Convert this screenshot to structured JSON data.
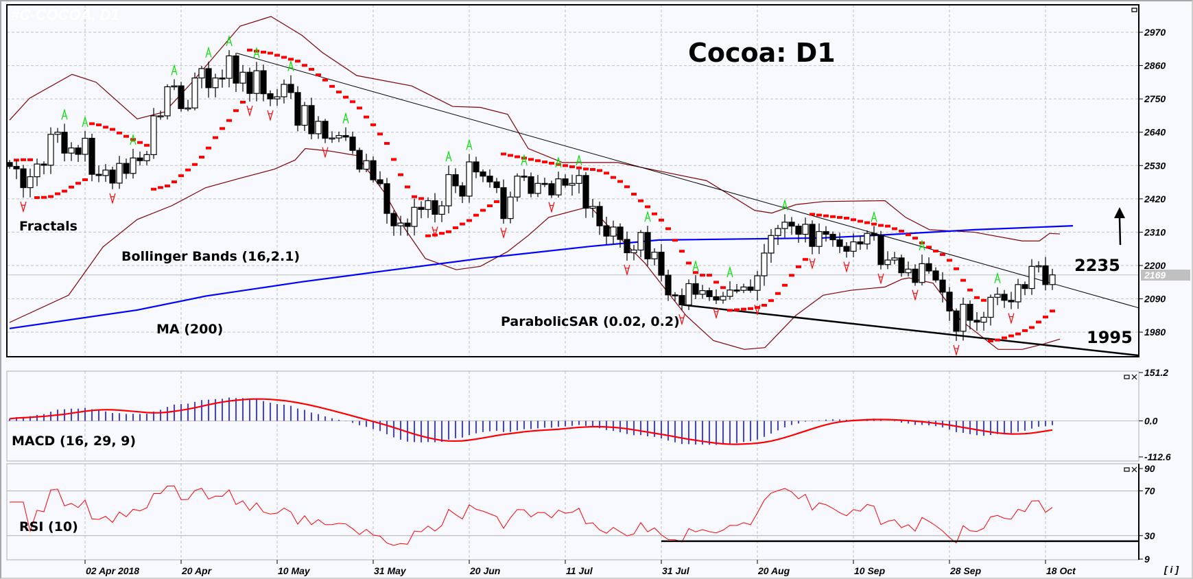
{
  "watermark": "#C-COCOA, D1",
  "title": "Cocoa: D1",
  "labels": {
    "fractals": "Fractals",
    "bollinger": "Bollinger Bands (16,2.1)",
    "ma": "MA (200)",
    "sar": "ParabolicSAR (0.02, 0.2)",
    "macd": "MACD (16, 29, 9)",
    "rsi": "RSI (10)",
    "resistance": "2235",
    "support": "1995",
    "current_price": "2169",
    "info": "[ i ]"
  },
  "colors": {
    "background": "#f7f9fe",
    "grid": "#c0c0c0",
    "ma": "#0000ff",
    "bands": "#800000",
    "sar": "#ff0000",
    "fractal_up": "#00e000",
    "fractal_down": "#ff0000",
    "macd_hist": "#0000ff",
    "macd_signal": "#ff0000",
    "rsi": "#ff0000",
    "price_box": "#c0c0c0"
  },
  "chart_data": [
    {
      "type": "candlestick",
      "symbol": "Cocoa",
      "timeframe": "D1",
      "ylim": [
        1940,
        3010
      ],
      "yticks": [
        2970,
        2860,
        2750,
        2640,
        2530,
        2420,
        2310,
        2200,
        2090,
        1980
      ],
      "xticks": [
        {
          "label": "02 Apr 2018",
          "bar": 12
        },
        {
          "label": "20 Apr",
          "bar": 26
        },
        {
          "label": "10 May",
          "bar": 40
        },
        {
          "label": "31 May",
          "bar": 54
        },
        {
          "label": "20 Jun",
          "bar": 68
        },
        {
          "label": "11 Jul",
          "bar": 82
        },
        {
          "label": "31 Jul",
          "bar": 96
        },
        {
          "label": "20 Aug",
          "bar": 110
        },
        {
          "label": "10 Sep",
          "bar": 124
        },
        {
          "label": "28 Sep",
          "bar": 138
        },
        {
          "label": "18 Oct",
          "bar": 152
        }
      ],
      "grid": true,
      "close": [
        2527,
        2519,
        2457,
        2493,
        2535,
        2531,
        2633,
        2640,
        2571,
        2588,
        2567,
        2620,
        2501,
        2497,
        2515,
        2472,
        2537,
        2504,
        2555,
        2546,
        2566,
        2694,
        2694,
        2790,
        2793,
        2718,
        2720,
        2819,
        2850,
        2787,
        2819,
        2818,
        2892,
        2802,
        2838,
        2768,
        2843,
        2767,
        2750,
        2757,
        2798,
        2771,
        2663,
        2728,
        2635,
        2676,
        2620,
        2621,
        2629,
        2624,
        2580,
        2518,
        2546,
        2483,
        2470,
        2372,
        2331,
        2340,
        2329,
        2392,
        2385,
        2414,
        2369,
        2397,
        2500,
        2463,
        2429,
        2542,
        2509,
        2495,
        2476,
        2457,
        2355,
        2426,
        2495,
        2493,
        2438,
        2471,
        2470,
        2433,
        2486,
        2465,
        2471,
        2497,
        2389,
        2395,
        2331,
        2297,
        2327,
        2286,
        2242,
        2251,
        2309,
        2222,
        2244,
        2168,
        2103,
        2101,
        2070,
        2140,
        2105,
        2117,
        2097,
        2086,
        2098,
        2119,
        2118,
        2129,
        2118,
        2166,
        2241,
        2299,
        2322,
        2343,
        2330,
        2303,
        2336,
        2263,
        2312,
        2303,
        2285,
        2263,
        2247,
        2278,
        2271,
        2306,
        2299,
        2203,
        2218,
        2225,
        2176,
        2188,
        2144,
        2206,
        2182,
        2152,
        2112,
        2050,
        1983,
        2072,
        2019,
        2013,
        2029,
        2095,
        2105,
        2085,
        2080,
        2137,
        2124,
        2197,
        2199,
        2137,
        2169
      ],
      "first_open": 2540,
      "current_price": 2169,
      "ma200": [
        [
          1,
          1992
        ],
        [
          19.6,
          2053
        ],
        [
          29.6,
          2099
        ],
        [
          43.6,
          2146
        ],
        [
          55.6,
          2182
        ],
        [
          69.6,
          2223
        ],
        [
          85.6,
          2263
        ],
        [
          95.6,
          2284
        ],
        [
          119.6,
          2291
        ],
        [
          127.6,
          2300
        ],
        [
          141.6,
          2318
        ],
        [
          156,
          2331
        ]
      ],
      "bollinger_upper": [
        [
          1,
          2680
        ],
        [
          3.9,
          2752
        ],
        [
          10.1,
          2831
        ],
        [
          13.6,
          2805
        ],
        [
          19.6,
          2684
        ],
        [
          23.6,
          2707
        ],
        [
          27.6,
          2805
        ],
        [
          34.6,
          2990
        ],
        [
          39.1,
          3022
        ],
        [
          43.6,
          2960
        ],
        [
          46.6,
          2903
        ],
        [
          51.6,
          2827
        ],
        [
          59.6,
          2793
        ],
        [
          65.6,
          2725
        ],
        [
          69.6,
          2722
        ],
        [
          73.6,
          2699
        ],
        [
          76.6,
          2586
        ],
        [
          81.6,
          2540
        ],
        [
          89.6,
          2540
        ],
        [
          97.6,
          2503
        ],
        [
          102.6,
          2480
        ],
        [
          105.6,
          2438
        ],
        [
          109.6,
          2382
        ],
        [
          112.1,
          2373
        ],
        [
          115.6,
          2401
        ],
        [
          119.6,
          2411
        ],
        [
          128.6,
          2414
        ],
        [
          131.6,
          2359
        ],
        [
          135.1,
          2318
        ],
        [
          141.6,
          2310
        ],
        [
          148.6,
          2281
        ],
        [
          151.1,
          2281
        ],
        [
          152.6,
          2306
        ],
        [
          154.1,
          2304
        ]
      ],
      "bollinger_lower": [
        [
          1,
          2012
        ],
        [
          9.6,
          2102
        ],
        [
          14.6,
          2261
        ],
        [
          19.6,
          2352
        ],
        [
          24.6,
          2397
        ],
        [
          29.6,
          2457
        ],
        [
          34.6,
          2488
        ],
        [
          39.6,
          2518
        ],
        [
          42.6,
          2548
        ],
        [
          44.1,
          2586
        ],
        [
          47.6,
          2578
        ],
        [
          51.6,
          2563
        ],
        [
          55.6,
          2442
        ],
        [
          58.6,
          2322
        ],
        [
          61.6,
          2223
        ],
        [
          66.1,
          2186
        ],
        [
          69.6,
          2197
        ],
        [
          73.6,
          2246
        ],
        [
          76.6,
          2299
        ],
        [
          79.6,
          2359
        ],
        [
          85.6,
          2395
        ],
        [
          88.6,
          2322
        ],
        [
          93.6,
          2208
        ],
        [
          99.6,
          2035
        ],
        [
          103.6,
          1952
        ],
        [
          108.1,
          1923
        ],
        [
          111.1,
          1929
        ],
        [
          115.6,
          2035
        ],
        [
          119.6,
          2102
        ],
        [
          123.6,
          2118
        ],
        [
          128.6,
          2129
        ],
        [
          131.1,
          2155
        ],
        [
          132.1,
          2159
        ],
        [
          135.6,
          2142
        ],
        [
          139.6,
          2020
        ],
        [
          145.1,
          1923
        ],
        [
          148.6,
          1923
        ],
        [
          151.6,
          1940
        ],
        [
          154.1,
          1957
        ]
      ],
      "trendline_upper": [
        [
          34.1,
          2901
        ],
        [
          165.6,
          2060
        ]
      ],
      "trendline_lower": [
        [
          99.1,
          2070
        ],
        [
          165.6,
          1903
        ]
      ],
      "annotation_arrow": "up"
    },
    {
      "type": "macd",
      "params": "16, 29, 9",
      "ylim": [
        -112.6,
        151.2
      ],
      "yticks": [
        151.2,
        0.0,
        -112.6
      ]
    },
    {
      "type": "rsi",
      "params": "10",
      "ylim": [
        9,
        90
      ],
      "yticks": [
        90,
        70,
        30,
        9
      ],
      "levels": [
        70,
        30
      ],
      "support_line": {
        "level": 25,
        "from_bar": 96
      }
    }
  ]
}
